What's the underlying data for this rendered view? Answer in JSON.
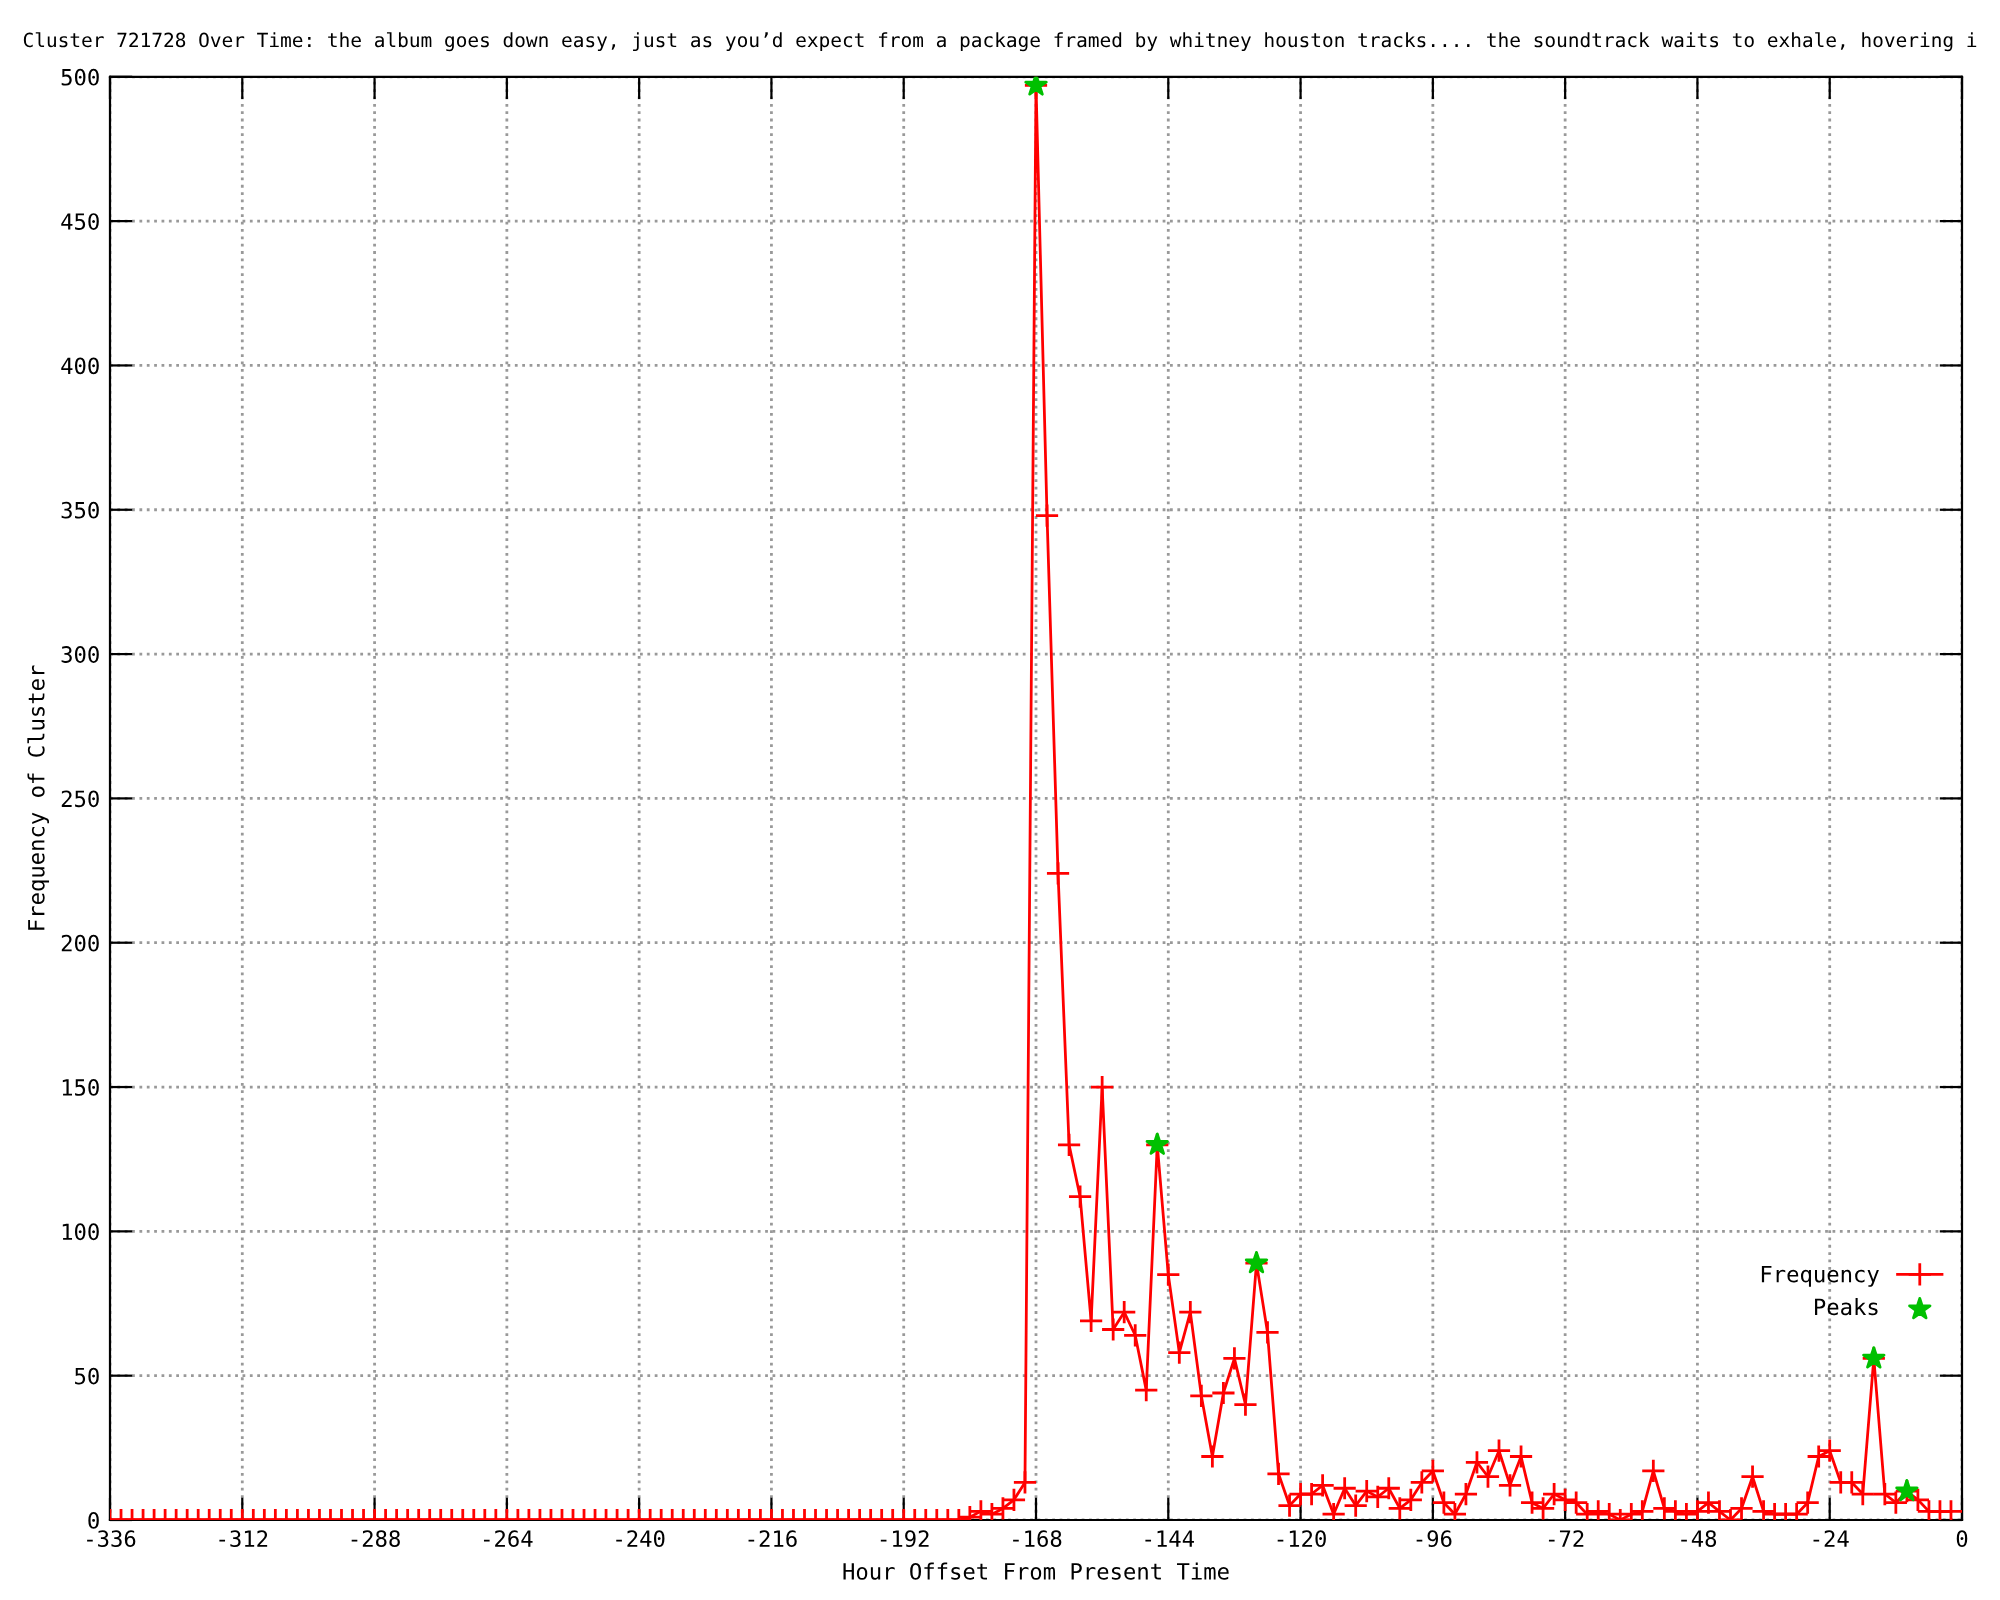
{
  "chart_data": {
    "type": "line",
    "title": "Cluster 721728 Over Time: the album goes down easy, just as you’d expect from a package framed by whitney houston tracks.... the soundtrack waits to exhale, hovering i",
    "xlabel": "Hour Offset From Present Time",
    "ylabel": "Frequency of Cluster",
    "xlim": [
      -336,
      0
    ],
    "ylim": [
      0,
      500
    ],
    "xticks": [
      -336,
      -312,
      -288,
      -264,
      -240,
      -216,
      -192,
      -168,
      -144,
      -120,
      -96,
      -72,
      -48,
      -24,
      0
    ],
    "yticks": [
      0,
      50,
      100,
      150,
      200,
      250,
      300,
      350,
      400,
      450,
      500
    ],
    "grid": true,
    "legend": "bottom right",
    "series": [
      {
        "name": "Frequency",
        "color": "#ff0000",
        "marker": "cross",
        "line_style": "solid",
        "x": [
          -336,
          -334,
          -332,
          -330,
          -328,
          -326,
          -324,
          -322,
          -320,
          -318,
          -316,
          -314,
          -312,
          -310,
          -308,
          -306,
          -304,
          -302,
          -300,
          -298,
          -296,
          -294,
          -292,
          -290,
          -288,
          -286,
          -284,
          -282,
          -280,
          -278,
          -276,
          -274,
          -272,
          -270,
          -268,
          -266,
          -264,
          -262,
          -260,
          -258,
          -256,
          -254,
          -252,
          -250,
          -248,
          -246,
          -244,
          -242,
          -240,
          -238,
          -236,
          -234,
          -232,
          -230,
          -228,
          -226,
          -224,
          -222,
          -220,
          -218,
          -216,
          -214,
          -212,
          -210,
          -208,
          -206,
          -204,
          -202,
          -200,
          -198,
          -196,
          -194,
          -192,
          -190,
          -188,
          -186,
          -184,
          -182,
          -180,
          -178,
          -176,
          -174,
          -172,
          -170,
          -168,
          -166,
          -164,
          -162,
          -160,
          -158,
          -156,
          -154,
          -152,
          -150,
          -148,
          -146,
          -144,
          -142,
          -140,
          -138,
          -136,
          -134,
          -132,
          -130,
          -128,
          -126,
          -124,
          -122,
          -120,
          -118,
          -116,
          -114,
          -112,
          -110,
          -108,
          -106,
          -104,
          -102,
          -100,
          -98,
          -96,
          -94,
          -92,
          -90,
          -88,
          -86,
          -84,
          -82,
          -80,
          -78,
          -76,
          -74,
          -72,
          -70,
          -68,
          -66,
          -64,
          -62,
          -60,
          -58,
          -56,
          -54,
          -52,
          -50,
          -48,
          -46,
          -44,
          -42,
          -40,
          -38,
          -36,
          -34,
          -32,
          -30,
          -28,
          -26,
          -24,
          -22,
          -20,
          -18,
          -16,
          -14,
          -12,
          -10,
          -8,
          -6,
          -4,
          -2
        ],
        "values": [
          0,
          0,
          0,
          0,
          0,
          0,
          0,
          0,
          0,
          0,
          0,
          0,
          0,
          0,
          0,
          0,
          0,
          0,
          0,
          0,
          0,
          0,
          0,
          0,
          0,
          0,
          0,
          0,
          0,
          0,
          0,
          0,
          0,
          0,
          0,
          0,
          0,
          0,
          0,
          0,
          0,
          0,
          0,
          0,
          0,
          0,
          0,
          0,
          0,
          0,
          0,
          0,
          0,
          0,
          0,
          0,
          0,
          0,
          0,
          0,
          0,
          0,
          0,
          0,
          0,
          0,
          0,
          0,
          0,
          0,
          0,
          0,
          0,
          0,
          0,
          0,
          0,
          0,
          1,
          3,
          2,
          4,
          7,
          13,
          497,
          348,
          224,
          130,
          112,
          69,
          150,
          66,
          72,
          64,
          45,
          130,
          85,
          58,
          72,
          43,
          22,
          44,
          56,
          40,
          89,
          65,
          16,
          5,
          9,
          9,
          12,
          2,
          11,
          5,
          10,
          8,
          11,
          4,
          7,
          13,
          17,
          6,
          2,
          9,
          20,
          15,
          24,
          12,
          22,
          6,
          4,
          9,
          7,
          6,
          2,
          3,
          2,
          0,
          2,
          3,
          17,
          4,
          3,
          2,
          3,
          6,
          3,
          0,
          4,
          15,
          3,
          2,
          2,
          2,
          6,
          22,
          24,
          13,
          13,
          9,
          56,
          9,
          6,
          10,
          7,
          3,
          3,
          3
        ]
      },
      {
        "name": "Peaks",
        "type": "scatter",
        "color": "#00c000",
        "marker": "star",
        "x": [
          -168,
          -146,
          -128,
          -16,
          -10
        ],
        "values": [
          497,
          130,
          89,
          56,
          10
        ]
      }
    ]
  }
}
